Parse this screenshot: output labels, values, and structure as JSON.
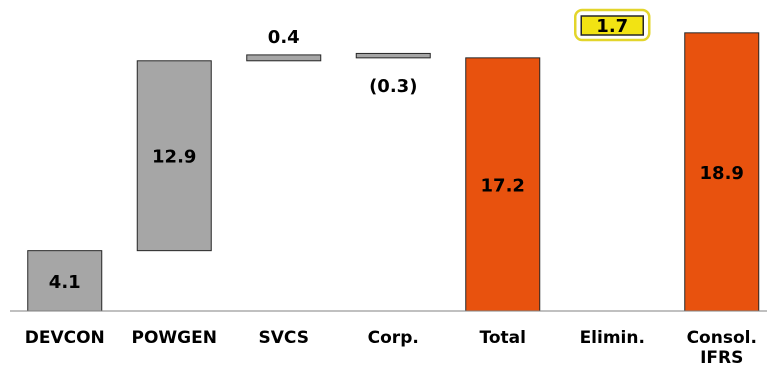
{
  "chart_data": {
    "type": "bar",
    "subtype": "waterfall",
    "title": "",
    "xlabel": "",
    "ylabel": "",
    "ylim": [
      0,
      19.5
    ],
    "grid": false,
    "legend": "none",
    "categories": [
      [
        "DEVCON"
      ],
      [
        "POWGEN"
      ],
      [
        "SVCS"
      ],
      [
        "Corp."
      ],
      [
        "Total"
      ],
      [
        "Elimin."
      ],
      [
        "Consol.",
        "IFRS"
      ]
    ],
    "bars": [
      {
        "category": "DEVCON",
        "start": 0,
        "end": 4.1,
        "value": 4.1,
        "label": "4.1",
        "kind": "segment",
        "label_pos": "inside"
      },
      {
        "category": "POWGEN",
        "start": 4.1,
        "end": 17.0,
        "value": 12.9,
        "label": "12.9",
        "kind": "segment",
        "label_pos": "inside"
      },
      {
        "category": "SVCS",
        "start": 17.0,
        "end": 17.4,
        "value": 0.4,
        "label": "0.4",
        "kind": "segment",
        "label_pos": "above"
      },
      {
        "category": "Corp.",
        "start": 17.2,
        "end": 17.5,
        "value": -0.3,
        "label": "(0.3)",
        "kind": "segment",
        "label_pos": "below"
      },
      {
        "category": "Total",
        "start": 0,
        "end": 17.2,
        "value": 17.2,
        "label": "17.2",
        "kind": "total",
        "label_pos": "inside"
      },
      {
        "category": "Elimin.",
        "start": 17.2,
        "end": 18.9,
        "value": 1.7,
        "label": "1.7",
        "kind": "highlight",
        "label_pos": "inside"
      },
      {
        "category": "Consol. IFRS",
        "start": 0,
        "end": 18.9,
        "value": 18.9,
        "label": "18.9",
        "kind": "total",
        "label_pos": "inside"
      }
    ],
    "colors": {
      "segment": "#a6a6a6",
      "total": "#e8520e",
      "highlight_fill": "#f2e313",
      "highlight_border": "#e3d52b",
      "outline": "#262626",
      "axis": "#808080"
    }
  }
}
